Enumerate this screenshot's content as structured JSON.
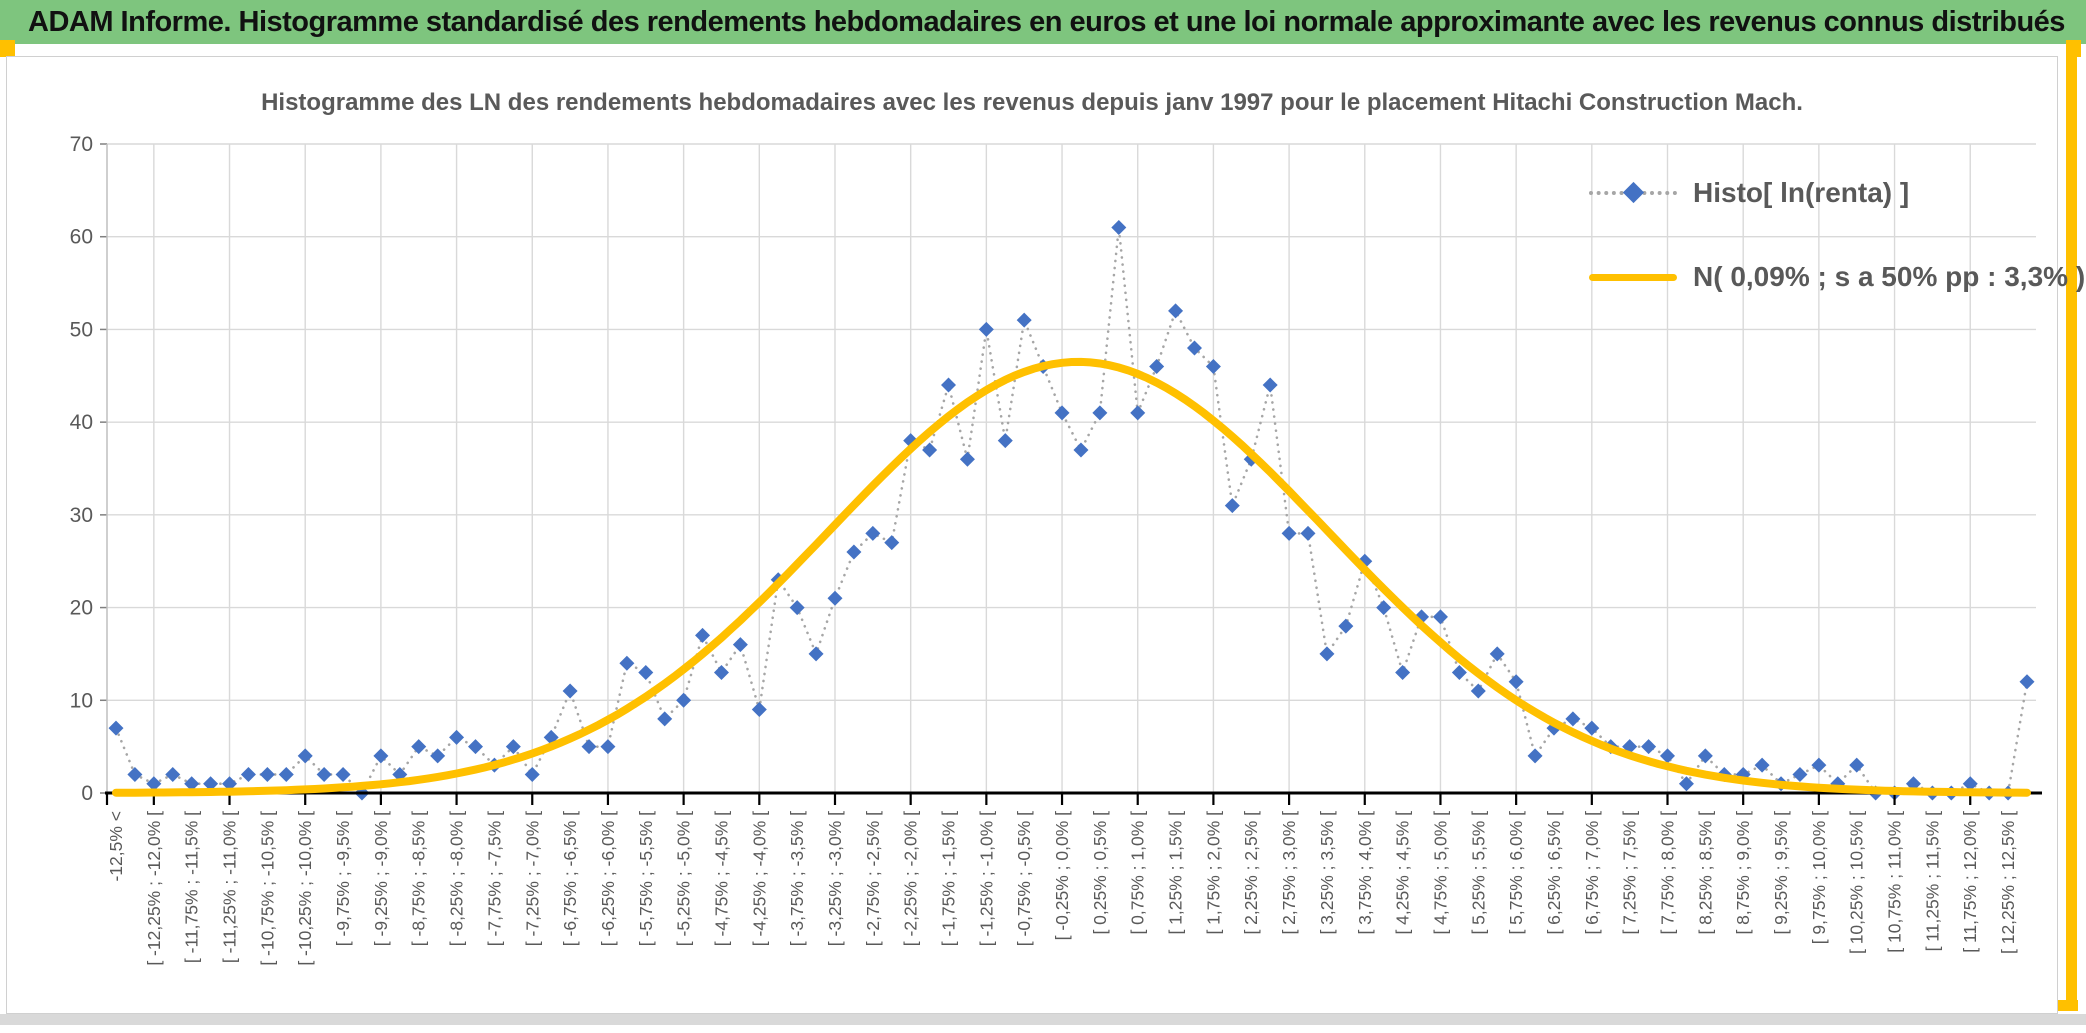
{
  "header": {
    "title": "ADAM Informe. Histogramme standardisé des rendements hebdomadaires en euros et une loi normale approximante avec les revenus connus distribués"
  },
  "chart": {
    "title": "Histogramme des LN des rendements hebdomadaires avec les revenus depuis janv 1997 pour le placement Hitachi Construction Mach.",
    "legend": {
      "position": "top-right",
      "items": [
        {
          "label": "Histo[ ln(renta) ]",
          "marker": "blue-diamond-on-dotted-line"
        },
        {
          "label": "N( 0,09% ; s a 50% pp : 3,3% )",
          "marker": "gold-thick-line"
        }
      ]
    }
  },
  "chart_data": {
    "type": "line",
    "subtype": "scatter-points-with-dotted-connector-plus-normal-curve-overlay",
    "title": "Histogramme des LN des rendements hebdomadaires avec les revenus depuis janv 1997 pour le placement Hitachi Construction Mach.",
    "xlabel": "",
    "ylabel": "",
    "ylim": [
      0,
      70
    ],
    "yticks": [
      0,
      10,
      20,
      30,
      40,
      50,
      60,
      70
    ],
    "grid": true,
    "legend_position": "top-right",
    "n_bins": 102,
    "bin_width_pct": 0.25,
    "x_range_pct": [
      -12.5,
      12.5
    ],
    "tick_labels_every_2_bins": [
      "-12,5% <",
      "[ -12,25% ; -12,0% [",
      "[ -11,75% ; -11,5% [",
      "[ -11,25% ; -11,0% [",
      "[ -10,75% ; -10,5% [",
      "[ -10,25% ; -10,0% [",
      "[ -9,75% ; -9,5% [",
      "[ -9,25% ; -9,0% [",
      "[ -8,75% ; -8,5% [",
      "[ -8,25% ; -8,0% [",
      "[ -7,75% ; -7,5% [",
      "[ -7,25% ; -7,0% [",
      "[ -6,75% ; -6,5% [",
      "[ -6,25% ; -6,0% [",
      "[ -5,75% ; -5,5% [",
      "[ -5,25% ; -5,0% [",
      "[ -4,75% ; -4,5% [",
      "[ -4,25% ; -4,0% [",
      "[ -3,75% ; -3,5% [",
      "[ -3,25% ; -3,0% [",
      "[ -2,75% ; -2,5% [",
      "[ -2,25% ; -2,0% [",
      "[ -1,75% ; -1,5% [",
      "[ -1,25% ; -1,0% [",
      "[ -0,75% ; -0,5% [",
      "[ -0,25% ; 0,0% [",
      "[ 0,25% ; 0,5% [",
      "[ 0,75% ; 1,0% [",
      "[ 1,25% ; 1,5% [",
      "[ 1,75% ; 2,0% [",
      "[ 2,25% ; 2,5% [",
      "[ 2,75% ; 3,0% [",
      "[ 3,25% ; 3,5% [",
      "[ 3,75% ; 4,0% [",
      "[ 4,25% ; 4,5% [",
      "[ 4,75% ; 5,0% [",
      "[ 5,25% ; 5,5% [",
      "[ 5,75% ; 6,0% [",
      "[ 6,25% ; 6,5% [",
      "[ 6,75% ; 7,0% [",
      "[ 7,25% ; 7,5% [",
      "[ 7,75% ; 8,0% [",
      "[ 8,25% ; 8,5% [",
      "[ 8,75% ; 9,0% [",
      "[ 9,25% ; 9,5% [",
      "[ 9,75% ; 10,0% [",
      "[ 10,25% ; 10,5% [",
      "[ 10,75% ; 11,0% [",
      "[ 11,25% ; 11,5% [",
      "[ 11,75% ; 12,0% [",
      "[ 12,25% ; 12,5% ["
    ],
    "series": [
      {
        "name": "Histo[ ln(renta) ]",
        "marker": "diamond",
        "marker_color": "#4472C4",
        "connector": "dotted",
        "connector_color": "#A6A6A6",
        "values": [
          7,
          2,
          1,
          2,
          1,
          1,
          1,
          2,
          2,
          2,
          4,
          2,
          2,
          0,
          4,
          2,
          5,
          4,
          6,
          5,
          3,
          5,
          2,
          6,
          11,
          5,
          5,
          14,
          13,
          8,
          10,
          17,
          13,
          16,
          9,
          23,
          20,
          15,
          21,
          26,
          28,
          27,
          38,
          37,
          44,
          36,
          50,
          38,
          51,
          46,
          41,
          37,
          41,
          61,
          41,
          46,
          52,
          48,
          46,
          31,
          36,
          44,
          28,
          28,
          15,
          18,
          25,
          20,
          13,
          19,
          19,
          13,
          11,
          15,
          12,
          4,
          7,
          8,
          7,
          5,
          5,
          5,
          4,
          1,
          4,
          2,
          2,
          3,
          1,
          2,
          3,
          1,
          3,
          0,
          0,
          1,
          0,
          0,
          1,
          0,
          0,
          12
        ]
      },
      {
        "name": "N( 0,09% ; s a 50% pp : 3,3% )",
        "curve": "normal",
        "color": "#FFC000",
        "mu_pct": 0.09,
        "sigma_pct": 3.3,
        "peak_y": 46.5
      }
    ]
  },
  "colors": {
    "header_bg": "#7EC57E",
    "accent_gold": "#FFC000",
    "diamond_blue": "#4472C4",
    "dotted_gray": "#A6A6A6",
    "text_gray": "#595959",
    "grid_gray": "#D9D9D9",
    "axis_black": "#000000"
  }
}
